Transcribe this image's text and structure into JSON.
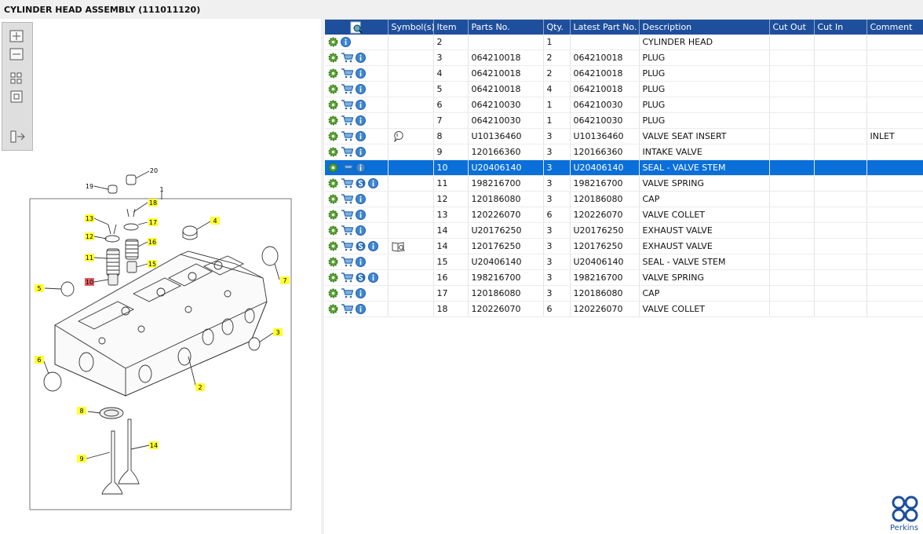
{
  "header": {
    "title": "CYLINDER HEAD ASSEMBLY (111011120)"
  },
  "table": {
    "columns": [
      "Symbol(s)",
      "Item",
      "Parts No.",
      "Qty.",
      "Latest Part No.",
      "Description",
      "Cut Out",
      "Cut In",
      "Comment"
    ],
    "rows": [
      {
        "item": "2",
        "qty": "1",
        "description": "CYLINDER HEAD"
      },
      {
        "item": "3",
        "part_no": "064210018",
        "qty": "2",
        "latest": "064210018",
        "description": "PLUG"
      },
      {
        "item": "4",
        "part_no": "064210018",
        "qty": "2",
        "latest": "064210018",
        "description": "PLUG"
      },
      {
        "item": "5",
        "part_no": "064210018",
        "qty": "4",
        "latest": "064210018",
        "description": "PLUG"
      },
      {
        "item": "6",
        "part_no": "064210030",
        "qty": "1",
        "latest": "064210030",
        "description": "PLUG"
      },
      {
        "item": "7",
        "part_no": "064210030",
        "qty": "1",
        "latest": "064210030",
        "description": "PLUG"
      },
      {
        "item": "8",
        "part_no": "U10136460",
        "qty": "3",
        "latest": "U10136460",
        "description": "VALVE SEAT INSERT",
        "comment": "INLET"
      },
      {
        "item": "9",
        "part_no": "120166360",
        "qty": "3",
        "latest": "120166360",
        "description": "INTAKE VALVE"
      },
      {
        "item": "10",
        "part_no": "U20406140",
        "qty": "3",
        "latest": "U20406140",
        "description": "SEAL - VALVE STEM"
      },
      {
        "item": "11",
        "part_no": "198216700",
        "qty": "3",
        "latest": "198216700",
        "description": "VALVE SPRING"
      },
      {
        "item": "12",
        "part_no": "120186080",
        "qty": "3",
        "latest": "120186080",
        "description": "CAP"
      },
      {
        "item": "13",
        "part_no": "120226070",
        "qty": "6",
        "latest": "120226070",
        "description": "VALVE COLLET"
      },
      {
        "item": "14",
        "part_no": "U20176250",
        "qty": "3",
        "latest": "U20176250",
        "description": "EXHAUST VALVE"
      },
      {
        "item": "14",
        "part_no": "120176250",
        "qty": "3",
        "latest": "120176250",
        "description": "EXHAUST VALVE"
      },
      {
        "item": "15",
        "part_no": "U20406140",
        "qty": "3",
        "latest": "U20406140",
        "description": "SEAL - VALVE STEM"
      },
      {
        "item": "16",
        "part_no": "198216700",
        "qty": "3",
        "latest": "198216700",
        "description": "VALVE SPRING"
      },
      {
        "item": "17",
        "part_no": "120186080",
        "qty": "3",
        "latest": "120186080",
        "description": "CAP"
      },
      {
        "item": "18",
        "part_no": "120226070",
        "qty": "6",
        "latest": "120226070",
        "description": "VALVE COLLET"
      }
    ]
  },
  "diagram": {
    "callouts": [
      "19",
      "20",
      "1",
      "18",
      "13",
      "17",
      "12",
      "16",
      "11",
      "15",
      "10",
      "4",
      "5",
      "7",
      "3",
      "6",
      "2",
      "8",
      "14",
      "9"
    ]
  },
  "logo": {
    "text": "Perkins"
  }
}
